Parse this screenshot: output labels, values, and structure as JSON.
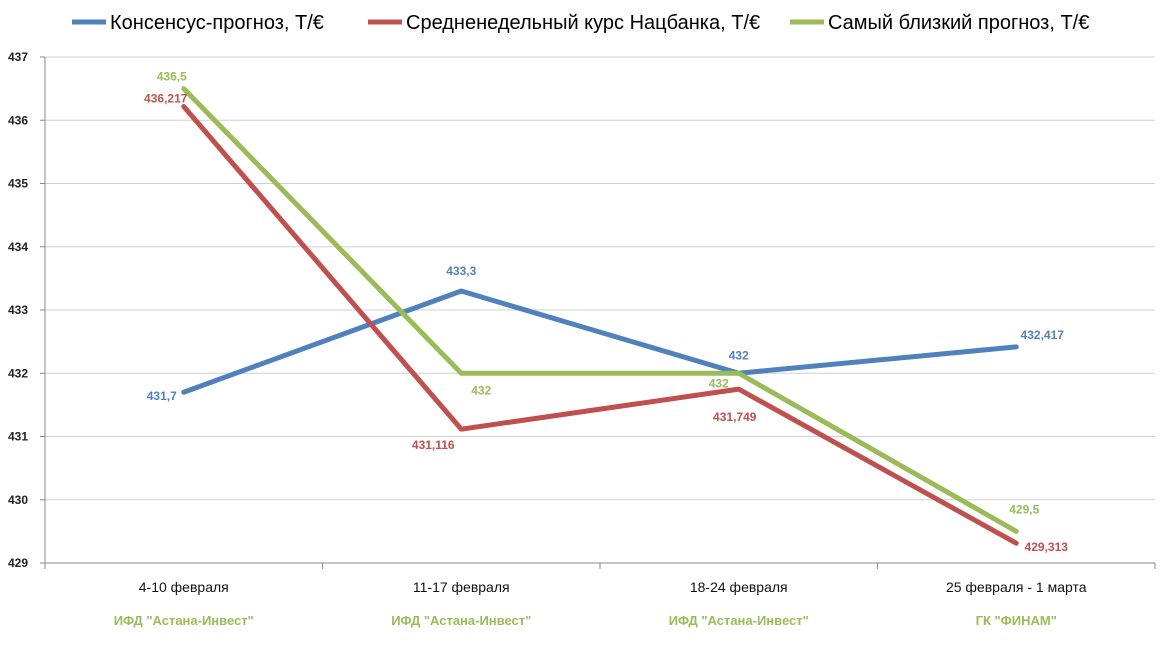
{
  "chart_data": {
    "type": "line",
    "categories": [
      "4-10 февраля",
      "11-17 февраля",
      "18-24 февраля",
      "25 февраля - 1 марта"
    ],
    "sub_labels": [
      "ИФД \"Астана-Инвест\"",
      "ИФД \"Астана-Инвест\"",
      "ИФД \"Астана-Инвест\"",
      "ГК \"ФИНАМ\""
    ],
    "sub_label_color": "#9bbb59",
    "series": [
      {
        "name": "Консенсус-прогноз,  Т/€",
        "color": "#4f81bd",
        "values": [
          431.7,
          433.3,
          432,
          432.417
        ],
        "labels": [
          "431,7",
          "433,3",
          "432",
          "432,417"
        ]
      },
      {
        "name": "Средненедельный  курс Нацбанка, Т/€",
        "color": "#c0504d",
        "values": [
          436.217,
          431.116,
          431.749,
          429.313
        ],
        "labels": [
          "436,217",
          "431,116",
          "431,749",
          "429,313"
        ]
      },
      {
        "name": "Самый близкий прогноз, Т/€",
        "color": "#9bbb59",
        "values": [
          436.5,
          432,
          432,
          429.5
        ],
        "labels": [
          "436,5",
          "432",
          "432",
          "429,5"
        ]
      }
    ],
    "y_ticks": [
      429,
      430,
      431,
      432,
      433,
      434,
      435,
      436,
      437
    ],
    "ylim": [
      429,
      437
    ],
    "grid": true,
    "legend_position": "top"
  }
}
